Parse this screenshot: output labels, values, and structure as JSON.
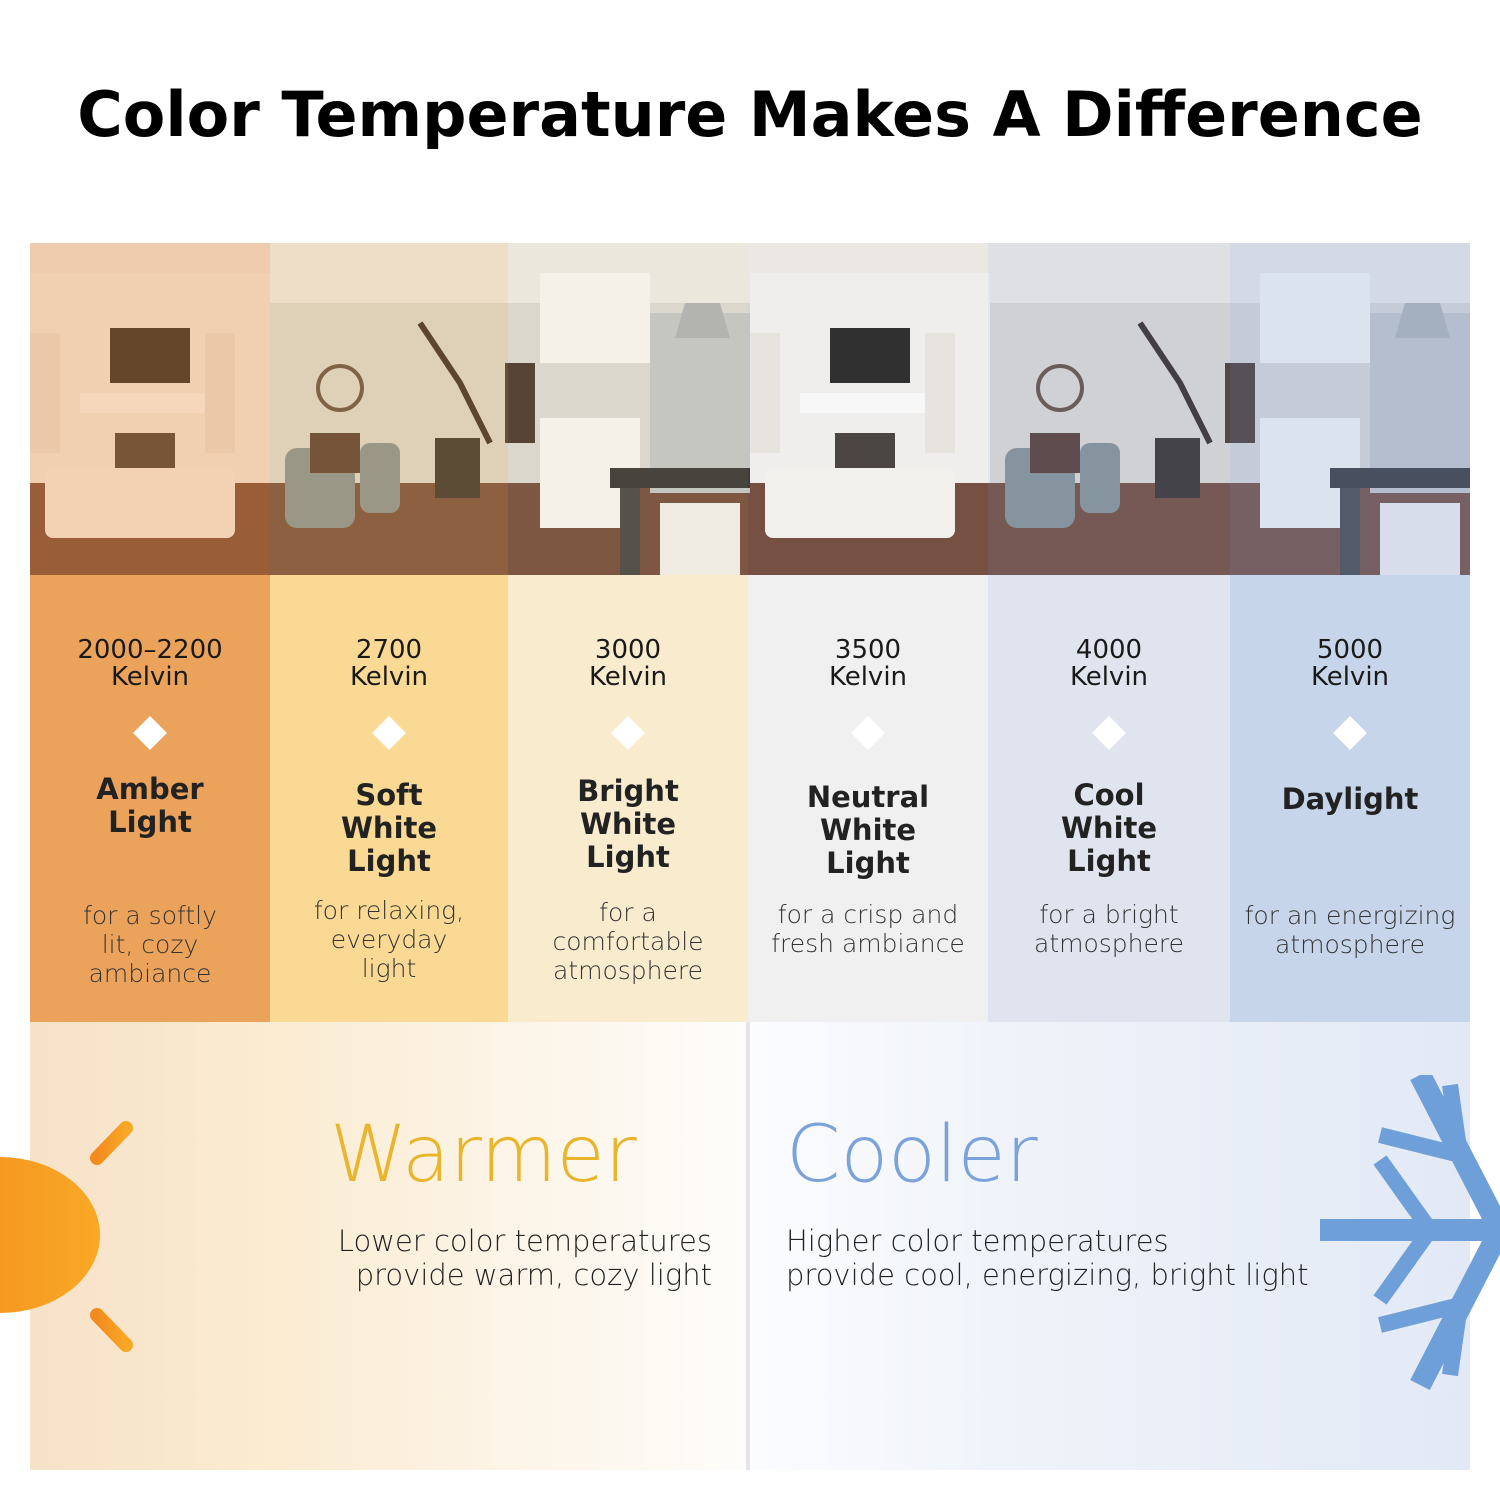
{
  "title": "Color Temperature Makes A Difference",
  "columns": [
    {
      "kelvin": "2000–2200",
      "unit": "Kelvin",
      "name": [
        "Amber",
        "Light"
      ],
      "description": [
        "for a softly",
        "lit, cozy",
        "ambiance"
      ],
      "color": "#eba35c",
      "tint": "#f0a050"
    },
    {
      "kelvin": "2700",
      "unit": "Kelvin",
      "name": [
        "Soft",
        "White",
        "Light"
      ],
      "description": [
        "for relaxing,",
        "everyday",
        "light"
      ],
      "color": "#f9d993",
      "tint": "#f5c77a"
    },
    {
      "kelvin": "3000",
      "unit": "Kelvin",
      "name": [
        "Bright",
        "White",
        "Light"
      ],
      "description": [
        "for a",
        "comfortable",
        "atmosphere"
      ],
      "color": "#f9ebcd",
      "tint": "#f3dfb8"
    },
    {
      "kelvin": "3500",
      "unit": "Kelvin",
      "name": [
        "Neutral",
        "White",
        "Light"
      ],
      "description": [
        "for a crisp and",
        "fresh ambiance"
      ],
      "color": "#f0f0f0",
      "tint": "#e8e8ec"
    },
    {
      "kelvin": "4000",
      "unit": "Kelvin",
      "name": [
        "Cool",
        "White",
        "Light"
      ],
      "description": [
        "for a bright",
        "atmosphere"
      ],
      "color": "#dfe4ef",
      "tint": "#c8d4ea"
    },
    {
      "kelvin": "5000",
      "unit": "Kelvin",
      "name": [
        "Daylight"
      ],
      "description": [
        "for an energizing",
        "atmosphere"
      ],
      "color": "#c7d5eb",
      "tint": "#b0c4e6"
    }
  ],
  "warmer": {
    "heading": "Warmer",
    "lines": [
      "Lower color temperatures",
      "provide warm, cozy light"
    ],
    "color": "#e9b52c",
    "icon": "sun-icon"
  },
  "cooler": {
    "heading": "Cooler",
    "lines": [
      "Higher color temperatures",
      "provide cool, energizing, bright light"
    ],
    "color": "#7ba3d9",
    "icon": "snowflake-icon"
  }
}
